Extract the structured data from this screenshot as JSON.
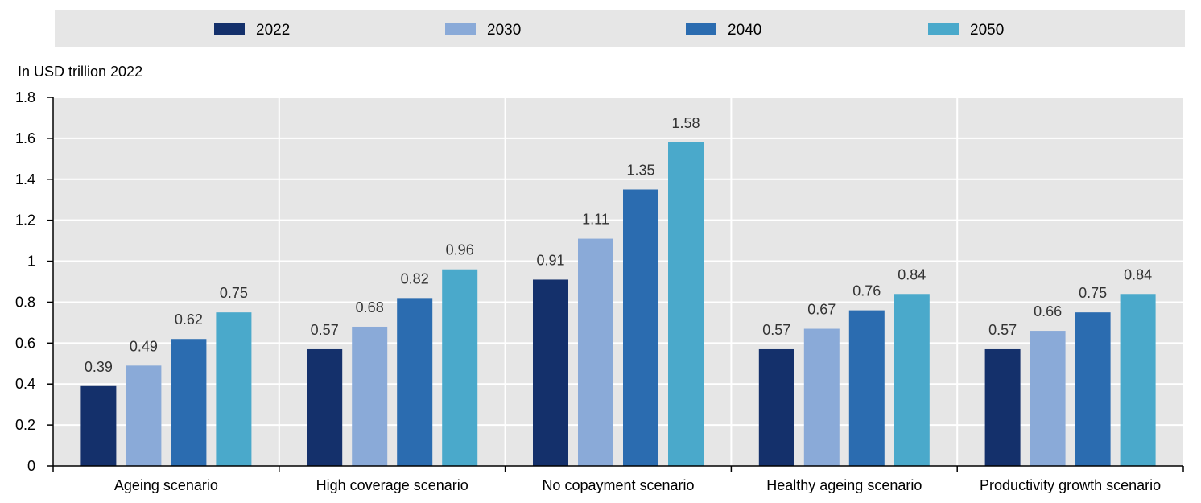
{
  "chart_data": {
    "type": "bar",
    "ylabel": "In USD trillion 2022",
    "ylim": [
      0,
      1.8
    ],
    "yticks": [
      0,
      0.2,
      0.4,
      0.6,
      0.8,
      1,
      1.2,
      1.4,
      1.6,
      1.8
    ],
    "ytick_labels": [
      "0",
      "0.2",
      "0.4",
      "0.6",
      "0.8",
      "1",
      "1.2",
      "1.4",
      "1.6",
      "1.8"
    ],
    "grid": true,
    "legend_position": "top",
    "categories": [
      "Ageing scenario",
      "High coverage scenario",
      "No copayment scenario",
      "Healthy ageing scenario",
      "Productivity growth scenario"
    ],
    "series": [
      {
        "name": "2022",
        "color": "#14306B",
        "values": [
          0.39,
          0.57,
          0.91,
          0.57,
          0.57
        ],
        "labels": [
          "0.39",
          "0.57",
          "0.91",
          "0.57",
          "0.57"
        ]
      },
      {
        "name": "2030",
        "color": "#8AAAD8",
        "values": [
          0.49,
          0.68,
          1.11,
          0.67,
          0.66
        ],
        "labels": [
          "0.49",
          "0.68",
          "1.11",
          "0.67",
          "0.66"
        ]
      },
      {
        "name": "2040",
        "color": "#2B6CB0",
        "values": [
          0.62,
          0.82,
          1.35,
          0.76,
          0.75
        ],
        "labels": [
          "0.62",
          "0.82",
          "1.35",
          "0.76",
          "0.75"
        ]
      },
      {
        "name": "2050",
        "color": "#4AA9CB",
        "values": [
          0.75,
          0.96,
          1.58,
          0.84,
          0.84
        ],
        "labels": [
          "0.75",
          "0.96",
          "1.58",
          "0.84",
          "0.84"
        ]
      }
    ]
  }
}
